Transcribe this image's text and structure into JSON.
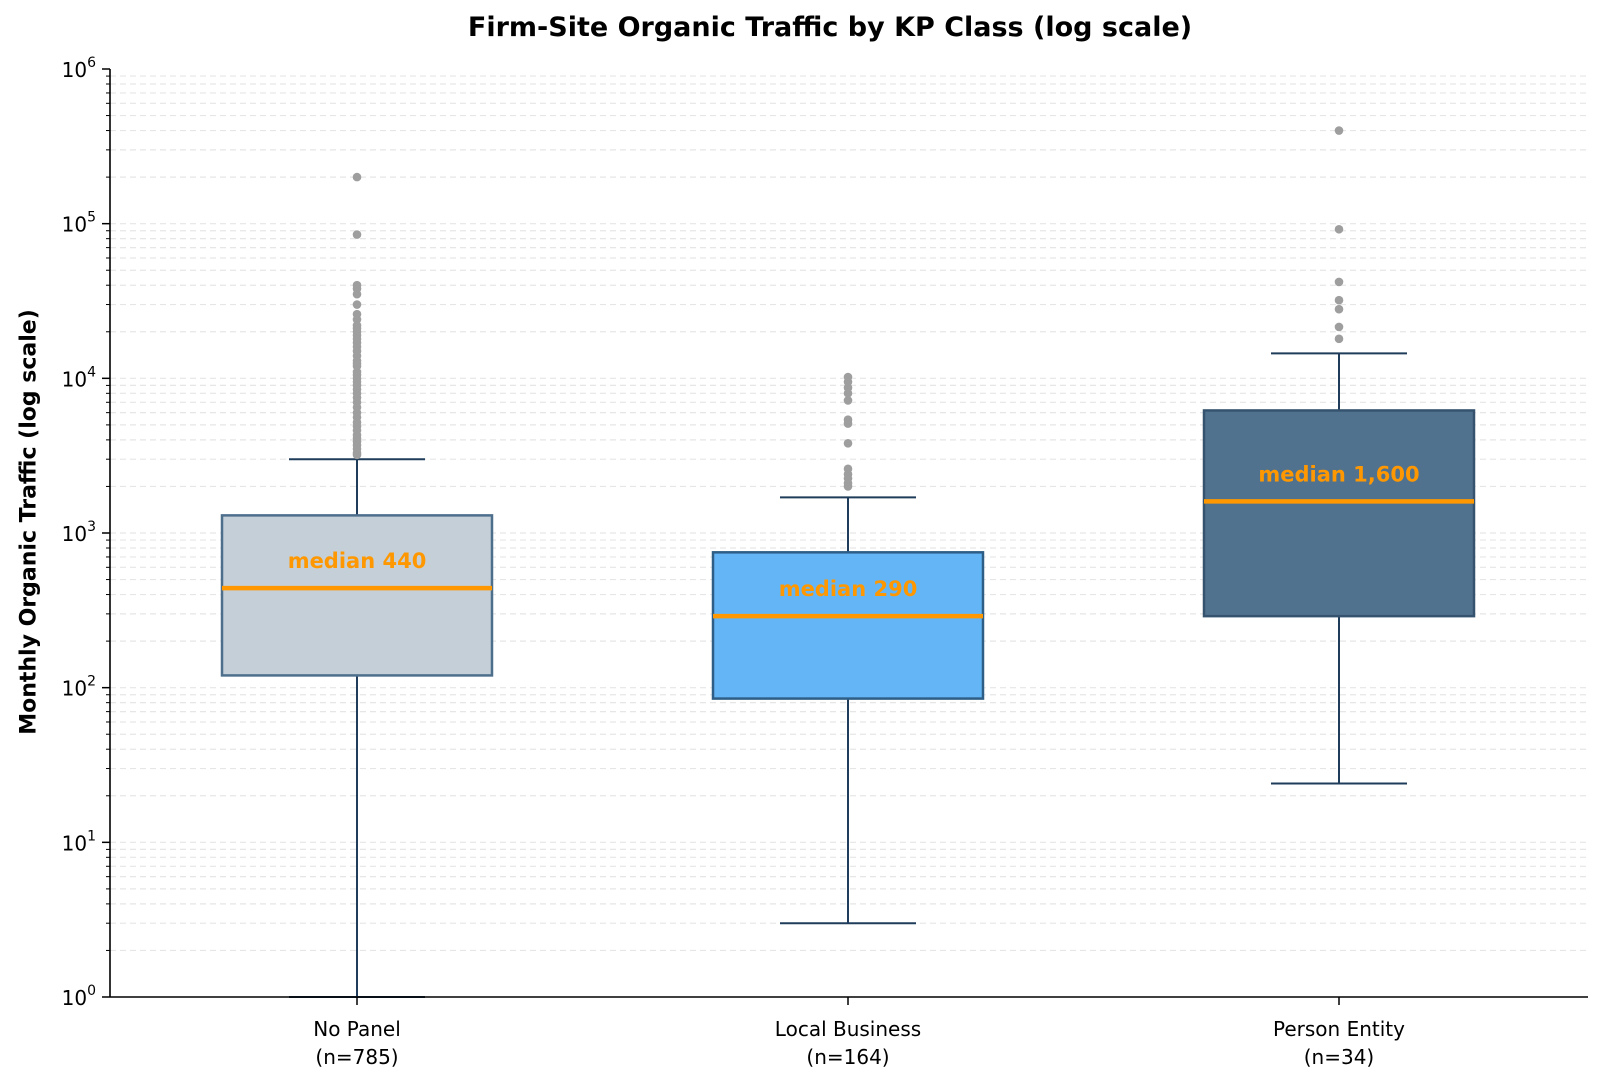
{
  "chart_data": {
    "type": "box",
    "title": "Firm-Site Organic Traffic by KP Class (log scale)",
    "xlabel": "",
    "ylabel": "Monthly Organic Traffic (log scale)",
    "yscale": "log",
    "ylim": [
      1,
      1000000
    ],
    "yticks": [
      {
        "value": 1,
        "base": "10",
        "exp": "0"
      },
      {
        "value": 10,
        "base": "10",
        "exp": "1"
      },
      {
        "value": 100,
        "base": "10",
        "exp": "2"
      },
      {
        "value": 1000,
        "base": "10",
        "exp": "3"
      },
      {
        "value": 10000,
        "base": "10",
        "exp": "4"
      },
      {
        "value": 100000,
        "base": "10",
        "exp": "5"
      },
      {
        "value": 1000000,
        "base": "10",
        "exp": "6"
      }
    ],
    "grid": "y minor dashed",
    "median_color": "#ff9800",
    "categories": [
      {
        "label": "No Panel",
        "n_label": "(n=785)",
        "fill": "#c4cfd8",
        "edge": "#4e6f8c",
        "whisker_low": 1,
        "q1": 120,
        "median": 440,
        "q3": 1300,
        "whisker_high": 3000,
        "median_label": "median 440",
        "outliers": [
          200000,
          85000,
          40000,
          38000,
          35000,
          30000,
          26000,
          24000,
          22000,
          21000,
          20000,
          19000,
          18000,
          17000,
          16000,
          15000,
          14000,
          13000,
          12500,
          12000,
          11000,
          10500,
          10000,
          9500,
          9000,
          8500,
          8000,
          7500,
          7000,
          6500,
          6000,
          5600,
          5200,
          4900,
          4600,
          4300,
          4100,
          3900,
          3700,
          3500,
          3300,
          3200
        ]
      },
      {
        "label": "Local Business",
        "n_label": "(n=164)",
        "fill": "#64b5f6",
        "edge": "#2e5e85",
        "whisker_low": 3,
        "q1": 85,
        "median": 290,
        "q3": 750,
        "whisker_high": 1700,
        "median_label": "median 290",
        "outliers": [
          10200,
          9500,
          8700,
          8000,
          7200,
          5400,
          5100,
          3800,
          2600,
          2400,
          2250,
          2100,
          2000
        ]
      },
      {
        "label": "Person Entity",
        "n_label": "(n=34)",
        "fill": "#51728f",
        "edge": "#35536f",
        "whisker_low": 24,
        "q1": 290,
        "median": 1600,
        "q3": 6200,
        "whisker_high": 14500,
        "median_label": "median 1,600",
        "outliers": [
          400000,
          92000,
          42000,
          32000,
          28000,
          21500,
          18000
        ]
      }
    ]
  }
}
